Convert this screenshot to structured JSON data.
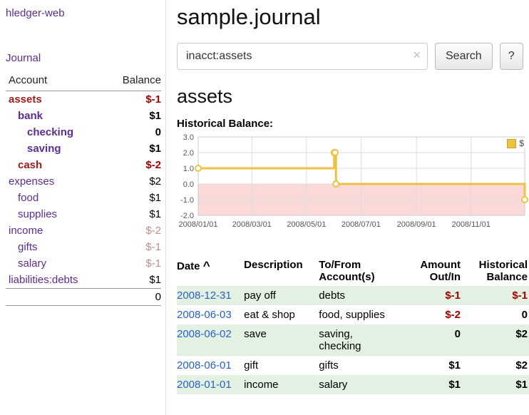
{
  "colors": {
    "link_purple": "#5c2d91",
    "date_blue": "#2a5fc7",
    "negative_red": "#a40000",
    "negative_account_red": "#9d1c1c",
    "faded_red": "#bc8f8f",
    "row_green": "#e2f1e2",
    "chart_line_gold": "#edc240",
    "chart_negative_pink": "#fbd9d9"
  },
  "sidebar": {
    "app_title": "hledger-web",
    "journal_link": "Journal",
    "header": {
      "account": "Account",
      "balance": "Balance"
    },
    "accounts": [
      {
        "name": "assets",
        "balance": "$-1"
      },
      {
        "name": "bank",
        "balance": "$1"
      },
      {
        "name": "checking",
        "balance": "0"
      },
      {
        "name": "saving",
        "balance": "$1"
      },
      {
        "name": "cash",
        "balance": "$-2"
      },
      {
        "name": "expenses",
        "balance": "$2"
      },
      {
        "name": "food",
        "balance": "$1"
      },
      {
        "name": "supplies",
        "balance": "$1"
      },
      {
        "name": "income",
        "balance": "$-2"
      },
      {
        "name": "gifts",
        "balance": "$-1"
      },
      {
        "name": "salary",
        "balance": "$-1"
      },
      {
        "name": "liabilities:debts",
        "balance": "$1"
      }
    ],
    "total": "0"
  },
  "main": {
    "title": "sample.journal",
    "search": {
      "value": "inacct:assets",
      "clear_icon": "×",
      "button_label": "Search",
      "help_label": "?"
    },
    "account_heading": "assets",
    "chart_label": "Historical Balance:"
  },
  "chart_data": {
    "type": "line",
    "step": true,
    "title": "Historical Balance:",
    "series_label": "$",
    "ylim": [
      -2,
      3
    ],
    "yticks": [
      3,
      2,
      1,
      0,
      -1,
      -2
    ],
    "xlim_days": [
      0,
      365
    ],
    "xtick_days": [
      0,
      60,
      121,
      182,
      244,
      305
    ],
    "xtick_labels": [
      "2008/01/01",
      "2008/03/01",
      "2008/05/01",
      "2008/07/01",
      "2008/09/01",
      "2008/11/01"
    ],
    "points": [
      {
        "date": "2008-01-01",
        "day": 0,
        "value": 1
      },
      {
        "date": "2008-06-01",
        "day": 152,
        "value": 2
      },
      {
        "date": "2008-06-02",
        "day": 153,
        "value": 2
      },
      {
        "date": "2008-06-03",
        "day": 154,
        "value": 0
      },
      {
        "date": "2008-12-31",
        "day": 365,
        "value": -1
      }
    ],
    "line_color": "#edc240",
    "negative_fill": "#fbd9d9",
    "grid_color": "#dddddd",
    "border_color": "#cccccc"
  },
  "register": {
    "columns": [
      {
        "label": "Date",
        "sort_icon": "^"
      },
      {
        "label": "Description"
      },
      {
        "line1": "To/From",
        "line2": "Account(s)"
      },
      {
        "line1": "Amount",
        "line2": "Out/In"
      },
      {
        "line1": "Historical",
        "line2": "Balance"
      }
    ],
    "rows": [
      {
        "date": "2008-12-31",
        "description": "pay off",
        "accounts": [
          "debts"
        ],
        "amount": "$-1",
        "balance": "$-1"
      },
      {
        "date": "2008-06-03",
        "description": "eat & shop",
        "accounts": [
          "food, supplies"
        ],
        "amount": "$-2",
        "balance": "0"
      },
      {
        "date": "2008-06-02",
        "description": "save",
        "accounts": [
          "saving,",
          "checking"
        ],
        "amount": "0",
        "balance": "$2"
      },
      {
        "date": "2008-06-01",
        "description": "gift",
        "accounts": [
          "gifts"
        ],
        "amount": "$1",
        "balance": "$2"
      },
      {
        "date": "2008-01-01",
        "description": "income",
        "accounts": [
          "salary"
        ],
        "amount": "$1",
        "balance": "$1"
      }
    ]
  }
}
